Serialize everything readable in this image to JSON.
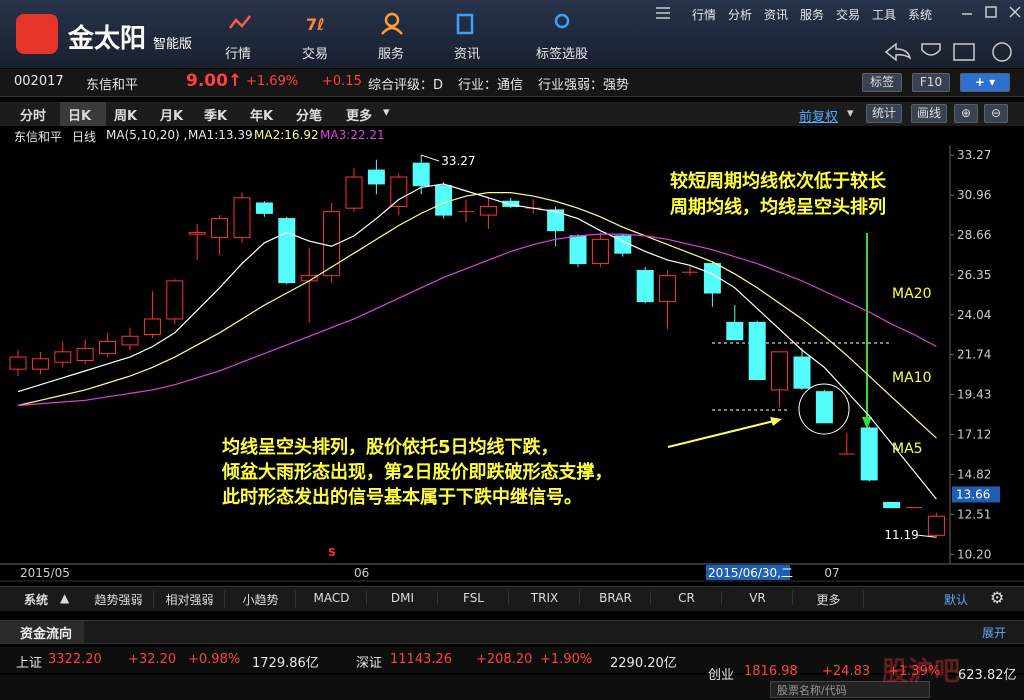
{
  "app": {
    "brand": "金太阳",
    "edition": "智能版",
    "nav": [
      "行情",
      "交易",
      "服务",
      "资讯",
      "标签选股"
    ],
    "menu": [
      "行情",
      "分析",
      "资讯",
      "服务",
      "交易",
      "工具",
      "系统"
    ]
  },
  "quote": {
    "code": "002017",
    "name": "东信和平",
    "price": "9.00↑",
    "change_pct": "+1.69%",
    "change": "+0.15",
    "rating": "综合评级：D",
    "industry": "行业：通信",
    "strength": "行业强弱：强势",
    "buttons": [
      "标签",
      "F10"
    ]
  },
  "period_tabs": [
    "分时",
    "日K",
    "周K",
    "月K",
    "季K",
    "年K",
    "分笔",
    "更多"
  ],
  "tools": [
    "前复权",
    "统计",
    "画线"
  ],
  "chart_data": {
    "type": "candlestick",
    "legend": [
      "东信和平",
      "日线",
      "MA(5,10,20) ,",
      "MA1:13.39",
      "MA2:16.92",
      "MA3:22.21"
    ],
    "categories": [
      "2015/05",
      null,
      null,
      null,
      null,
      null,
      null,
      null,
      null,
      null,
      null,
      null,
      null,
      null,
      null,
      "06",
      null,
      null,
      null,
      null,
      null,
      null,
      null,
      null,
      null,
      null,
      null,
      null,
      null,
      null,
      null,
      null,
      null,
      null,
      null,
      null,
      "07",
      null,
      null,
      null,
      null,
      null
    ],
    "open": [
      20.9,
      20.9,
      21.3,
      21.4,
      21.8,
      22.3,
      22.9,
      23.8,
      28.7,
      28.5,
      28.5,
      30.5,
      29.6,
      26.0,
      26.3,
      30.2,
      32.4,
      30.3,
      32.8,
      31.5,
      30.0,
      29.8,
      30.6,
      30.2,
      30.1,
      28.6,
      27.0,
      28.6,
      26.6,
      24.8,
      26.5,
      27.0,
      23.6,
      23.6,
      19.7,
      21.6,
      19.6,
      16.0,
      17.5,
      13.2,
      12.9,
      11.3
    ],
    "high": [
      22.0,
      21.9,
      22.5,
      22.6,
      23.0,
      23.3,
      25.4,
      26.1,
      29.3,
      29.8,
      31.1,
      30.6,
      29.7,
      27.9,
      30.5,
      32.5,
      33.0,
      32.2,
      33.27,
      31.7,
      30.7,
      30.8,
      30.8,
      30.7,
      30.3,
      28.7,
      28.8,
      28.7,
      26.8,
      26.6,
      26.9,
      27.1,
      24.6,
      23.7,
      21.9,
      22.1,
      19.7,
      17.2,
      17.6,
      13.2,
      12.9,
      12.6
    ],
    "low": [
      20.5,
      20.6,
      21.0,
      21.2,
      21.6,
      22.0,
      22.7,
      23.5,
      27.2,
      27.5,
      28.2,
      29.7,
      25.8,
      23.6,
      25.9,
      30.0,
      31.0,
      29.8,
      31.0,
      29.6,
      29.4,
      29.0,
      30.2,
      29.9,
      28.0,
      26.8,
      26.8,
      27.4,
      24.7,
      23.2,
      26.3,
      24.5,
      22.6,
      20.3,
      18.7,
      19.7,
      17.8,
      16.0,
      14.4,
      12.9,
      12.9,
      11.19
    ],
    "close": [
      21.6,
      21.5,
      21.9,
      22.1,
      22.5,
      22.8,
      23.8,
      26.0,
      28.8,
      29.6,
      30.8,
      29.9,
      25.9,
      26.3,
      30.0,
      32.0,
      31.6,
      32.0,
      31.5,
      29.8,
      30.0,
      30.3,
      30.3,
      30.2,
      28.9,
      27.0,
      28.4,
      27.6,
      24.8,
      26.3,
      26.5,
      25.3,
      22.6,
      20.3,
      21.9,
      19.8,
      17.8,
      16.0,
      14.5,
      12.9,
      12.9,
      12.4
    ],
    "ma": [
      {
        "name": "MA5",
        "color": "#ffffff",
        "values": [
          19.6,
          20.0,
          20.4,
          20.8,
          21.2,
          21.6,
          22.2,
          23.0,
          24.3,
          25.6,
          27.0,
          28.2,
          28.8,
          28.3,
          28.0,
          28.6,
          29.6,
          30.7,
          31.4,
          31.6,
          31.2,
          30.8,
          30.4,
          30.2,
          30.0,
          29.6,
          28.9,
          28.3,
          27.7,
          27.2,
          26.9,
          26.4,
          25.6,
          24.4,
          23.2,
          22.0,
          21.0,
          19.6,
          18.2,
          16.6,
          15.0,
          13.39
        ]
      },
      {
        "name": "MA10",
        "color": "#ffff80",
        "values": [
          18.8,
          19.1,
          19.4,
          19.7,
          20.1,
          20.5,
          21.0,
          21.6,
          22.3,
          23.0,
          23.8,
          24.6,
          25.3,
          26.0,
          26.8,
          27.6,
          28.4,
          29.2,
          29.9,
          30.5,
          30.9,
          31.1,
          31.1,
          30.9,
          30.6,
          30.2,
          29.7,
          29.1,
          28.6,
          28.1,
          27.6,
          27.1,
          26.4,
          25.6,
          24.7,
          23.8,
          22.8,
          21.7,
          20.5,
          19.3,
          18.1,
          16.92
        ]
      },
      {
        "name": "MA20",
        "color": "#e040e0",
        "values": [
          18.8,
          18.9,
          19.0,
          19.1,
          19.3,
          19.5,
          19.7,
          20.0,
          20.4,
          20.8,
          21.3,
          21.8,
          22.3,
          22.8,
          23.3,
          23.8,
          24.4,
          25.0,
          25.6,
          26.2,
          26.7,
          27.2,
          27.7,
          28.1,
          28.4,
          28.6,
          28.7,
          28.7,
          28.6,
          28.4,
          28.1,
          27.8,
          27.4,
          27.0,
          26.5,
          26.0,
          25.4,
          24.8,
          24.2,
          23.5,
          22.9,
          22.21
        ]
      }
    ],
    "up_color": "#ff3232",
    "down_color": "#54fcfc",
    "ylim": [
      9.7,
      33.85
    ],
    "yticks": [
      33.27,
      30.96,
      28.66,
      26.35,
      24.04,
      21.74,
      19.43,
      17.12,
      14.82,
      12.51,
      {
        "value": 10.2,
        "label": "10.20"
      }
    ],
    "high_label": 33.27,
    "low_label": 11.19,
    "cursor_price": 13.66,
    "cursor_date": "2015/06/30,二",
    "signal": "S",
    "annotations": {
      "top": [
        "较短周期均线依次低于较长",
        "周期均线，均线呈空头排列"
      ],
      "bottom": [
        "均线呈空头排列，股价依托5日均线下跌，",
        "倾盆大雨形态出现，第2日股价即跌破形态支撑，",
        "此时形态发出的信号基本属于下跌中继信号。"
      ]
    }
  },
  "indicators": {
    "system": "系统",
    "tabs": [
      "趋势强弱",
      "相对强弱",
      "小趋势",
      "MACD",
      "DMI",
      "FSL",
      "TRIX",
      "BRAR",
      "CR",
      "VR",
      "更多"
    ],
    "default": "默认"
  },
  "flow": {
    "title": "资金流向",
    "expand": "展开"
  },
  "indices": [
    {
      "name": "上证",
      "value": "3322.20",
      "change": "+32.20",
      "pct": "+0.98%",
      "amount": "1729.86亿"
    },
    {
      "name": "深证",
      "value": "11143.26",
      "change": "+208.20",
      "pct": "+1.90%",
      "amount": "2290.20亿"
    },
    {
      "name": "创业",
      "value": "1816.98",
      "change": "+24.83",
      "pct": "+1.39%",
      "amount": "623.82亿"
    }
  ],
  "search": "股票名称/代码",
  "watermark": "股沪吧"
}
